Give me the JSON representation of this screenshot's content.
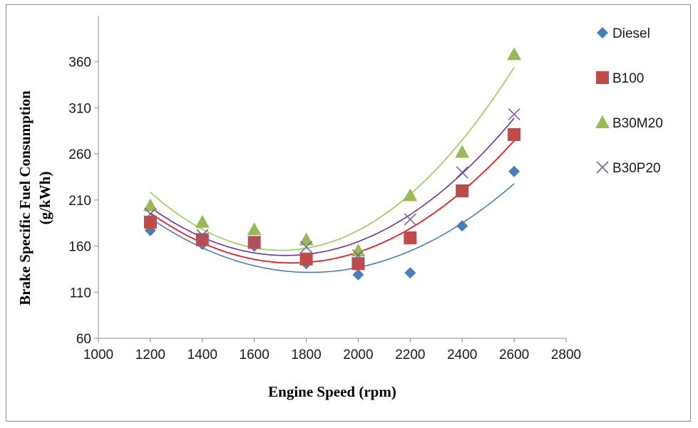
{
  "chart_data": {
    "type": "scatter",
    "xlabel": "Engine Speed (rpm)",
    "ylabel": "Brake Specific Fuel Consumption (g/kWh)",
    "ylabel_lines": [
      "Brake Specific Fuel Consumption",
      "(g/kWh)"
    ],
    "xlim": [
      1000,
      2800
    ],
    "ylim": [
      60,
      410
    ],
    "xticks": [
      1000,
      1200,
      1400,
      1600,
      1800,
      2000,
      2200,
      2400,
      2600,
      2800
    ],
    "yticks": [
      60,
      110,
      160,
      210,
      260,
      310,
      360
    ],
    "grid": false,
    "legend_position": "right",
    "trendline": "polynomial order 2",
    "x": [
      1200,
      1400,
      1600,
      1800,
      2000,
      2200,
      2400,
      2600
    ],
    "series": [
      {
        "name": "Diesel",
        "marker": "diamond",
        "color": "#4a7ebb",
        "trend_color": "#4a7ebb",
        "values": [
          177,
          162,
          160,
          141,
          129,
          131,
          182,
          241
        ]
      },
      {
        "name": "B100",
        "marker": "square",
        "color": "#be4b48",
        "trend_color": "#ff0000",
        "values": [
          186,
          167,
          164,
          146,
          141,
          169,
          220,
          281
        ]
      },
      {
        "name": "B30M20",
        "marker": "triangle",
        "color": "#98b954",
        "trend_color": "#92d050",
        "values": [
          204,
          186,
          178,
          167,
          155,
          215,
          262,
          368
        ]
      },
      {
        "name": "B30P20",
        "marker": "x",
        "color": "#7d60a0",
        "trend_color": "#7030a0",
        "values": [
          195,
          172,
          164,
          159,
          150,
          189,
          240,
          303
        ]
      }
    ]
  }
}
